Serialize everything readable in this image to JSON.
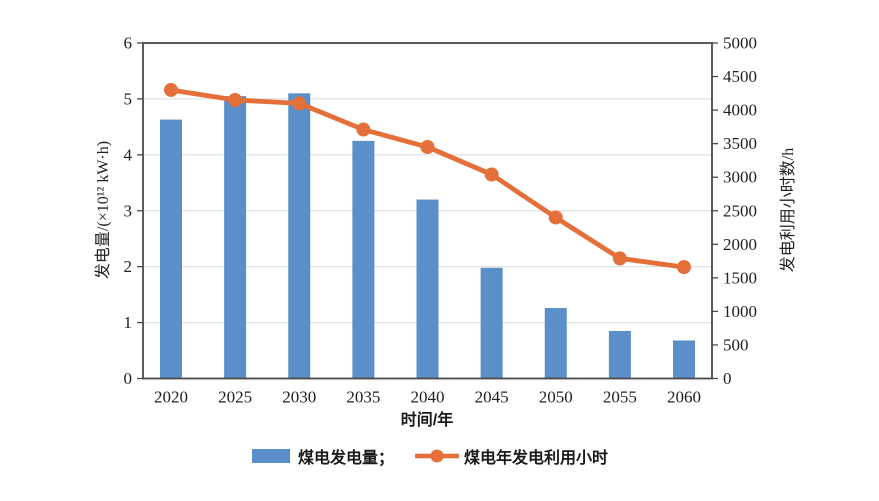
{
  "chart_data": {
    "type": "combo-bar-line",
    "categories": [
      "2020",
      "2025",
      "2030",
      "2035",
      "2040",
      "2045",
      "2050",
      "2055",
      "2060"
    ],
    "series": [
      {
        "name": "煤电发电量",
        "type": "bar",
        "axis": "left",
        "values": [
          4.63,
          5.05,
          5.1,
          4.25,
          3.2,
          1.98,
          1.26,
          0.85,
          0.68
        ]
      },
      {
        "name": "煤电年发电利用小时",
        "type": "line",
        "axis": "right",
        "values": [
          4300,
          4150,
          4100,
          3710,
          3450,
          3040,
          2400,
          1790,
          1660
        ]
      }
    ],
    "xlabel": "时间/年",
    "left_axis": {
      "label": "发电量/(×10¹² kW·h)",
      "min": 0,
      "max": 6,
      "step": 1
    },
    "right_axis": {
      "label": "发电利用小时数/h",
      "min": 0,
      "max": 5000,
      "step": 500
    },
    "legend": [
      "煤电发电量；",
      "煤电年发电利用小时"
    ],
    "legend_position": "bottom-center",
    "grid": "horizontal-at-left-axis-integers-1-to-5",
    "colors": {
      "bar": "#5b8fc9",
      "line": "#e56f38",
      "axis": "#4a4a4a",
      "gridline": "#dcdcdc",
      "tick_text": "#1f1f1f"
    }
  }
}
